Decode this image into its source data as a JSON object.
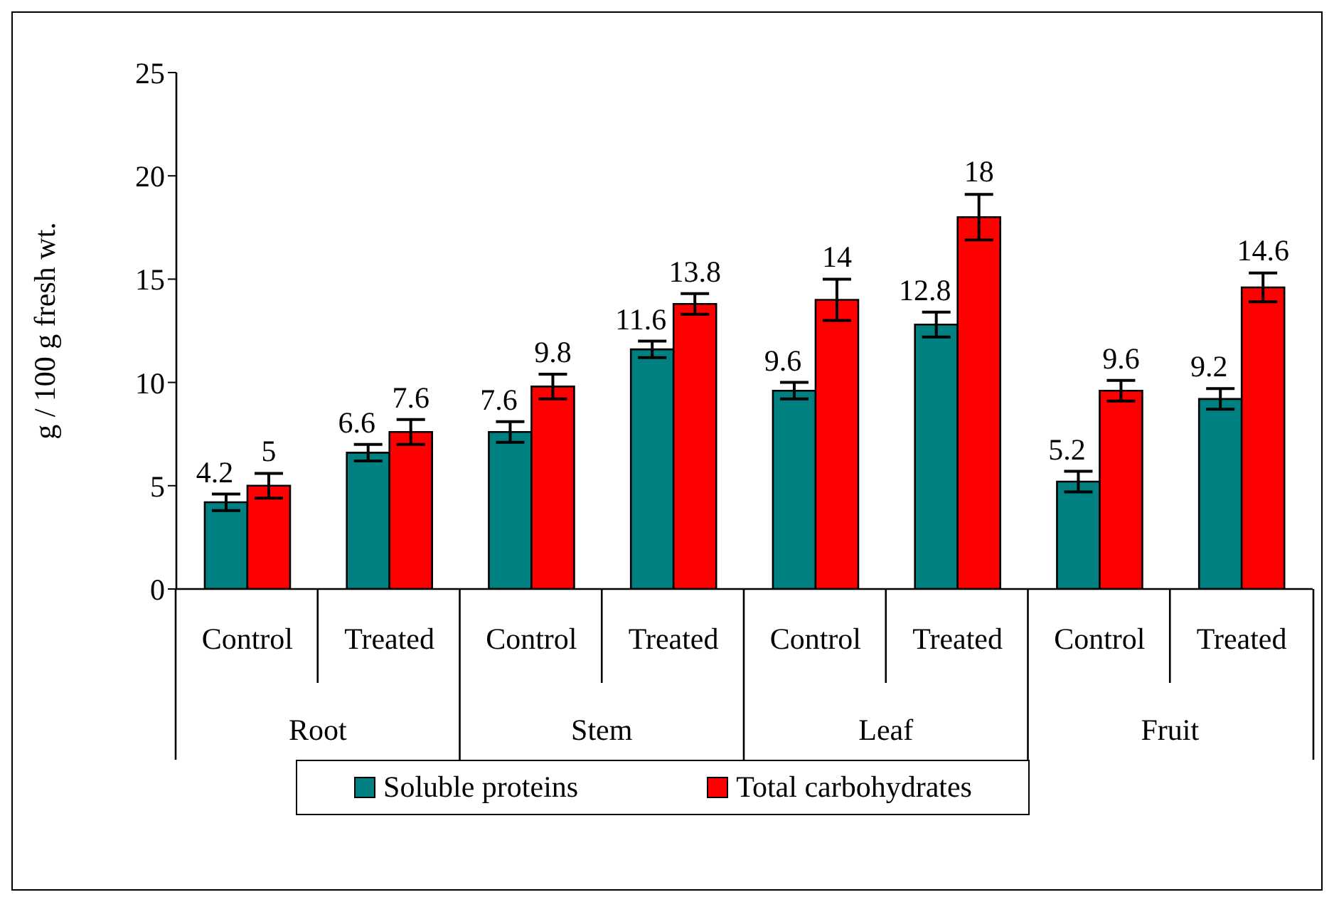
{
  "chart_data": {
    "type": "bar",
    "ylabel": "g / 100 g fresh wt.",
    "categories": [
      "Control",
      "Treated",
      "Control",
      "Treated",
      "Control",
      "Treated",
      "Control",
      "Treated"
    ],
    "annotations": [
      "Root",
      "Stem",
      "Leaf",
      "Fruit"
    ],
    "series": [
      {
        "name": "Soluble proteins",
        "color": "#008080",
        "values": [
          4.2,
          6.6,
          7.6,
          11.6,
          9.6,
          12.8,
          5.2,
          9.2
        ],
        "errors": [
          0.4,
          0.4,
          0.5,
          0.4,
          0.4,
          0.6,
          0.5,
          0.5
        ]
      },
      {
        "name": "Total carbohydrates",
        "color": "#ff0000",
        "values": [
          5,
          7.6,
          9.8,
          13.8,
          14,
          18,
          9.6,
          14.6
        ],
        "errors": [
          0.6,
          0.6,
          0.6,
          0.5,
          1.0,
          1.1,
          0.5,
          0.7
        ]
      }
    ],
    "ylim": [
      0,
      25
    ],
    "yticks": [
      0,
      5,
      10,
      15,
      20,
      25
    ],
    "data_labels": true,
    "legend": "bottom",
    "grid": false
  }
}
